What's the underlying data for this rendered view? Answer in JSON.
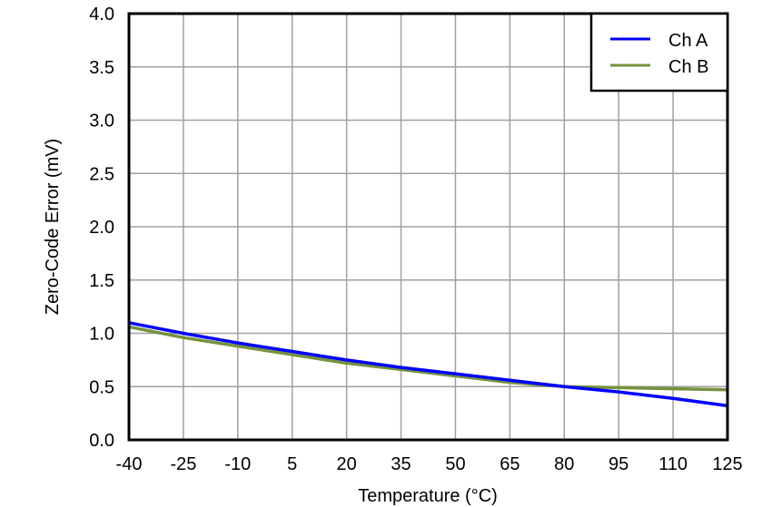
{
  "chart_data": {
    "type": "line",
    "title": "",
    "xlabel": "Temperature (°C)",
    "ylabel": "Zero-Code Error (mV)",
    "xlim": [
      -40,
      125
    ],
    "ylim": [
      0.0,
      4.0
    ],
    "grid": true,
    "legend_position": "top-right",
    "x_ticks": [
      "-40",
      "-25",
      "-10",
      "5",
      "20",
      "35",
      "50",
      "65",
      "80",
      "95",
      "110",
      "125"
    ],
    "y_ticks": [
      "0.0",
      "0.5",
      "1.0",
      "1.5",
      "2.0",
      "2.5",
      "3.0",
      "3.5",
      "4.0"
    ],
    "x": [
      -40,
      -25,
      -10,
      5,
      20,
      35,
      50,
      65,
      80,
      95,
      110,
      125
    ],
    "series": [
      {
        "name": "Ch A",
        "color": "#0000ff",
        "values": [
          1.1,
          1.0,
          0.91,
          0.83,
          0.75,
          0.68,
          0.62,
          0.56,
          0.5,
          0.45,
          0.39,
          0.32
        ]
      },
      {
        "name": "Ch B",
        "color": "#76923c",
        "values": [
          1.06,
          0.96,
          0.88,
          0.8,
          0.72,
          0.66,
          0.6,
          0.54,
          0.5,
          0.49,
          0.48,
          0.47
        ]
      }
    ]
  },
  "legend": {
    "items": [
      {
        "label": "Ch A"
      },
      {
        "label": "Ch B"
      }
    ]
  },
  "colors": {
    "grid": "#a0a0a0",
    "axis": "#000000",
    "background": "#ffffff"
  }
}
